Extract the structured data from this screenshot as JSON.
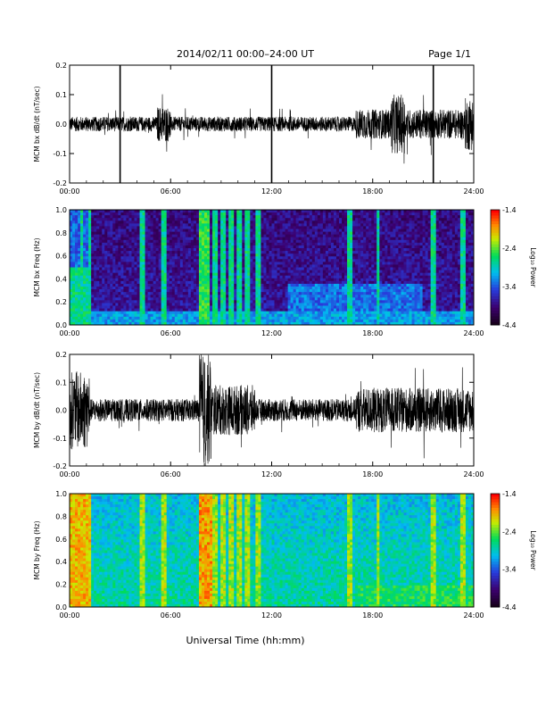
{
  "header": {
    "title": "2014/02/11   00:00–24:00 UT",
    "page": "Page 1/1"
  },
  "footer": {
    "xlabel": "Universal Time (hh:mm)"
  },
  "colorbar": {
    "label": "Log₁₀ Power",
    "ticks": [
      "-1.4",
      "-2.4",
      "-3.4",
      "-4.4"
    ],
    "range": [
      -4.4,
      -1.4
    ],
    "colors": [
      "#200020",
      "#3a006a",
      "#2040e0",
      "#00c8ff",
      "#00e060",
      "#f0f000",
      "#ff8000",
      "#ff0000"
    ]
  },
  "chart_data": [
    {
      "type": "line",
      "ylabel": "MCM bx dB/dt (nT/sec)",
      "xlim": [
        "00:00",
        "24:00"
      ],
      "ylim": [
        -0.2,
        0.2
      ],
      "x_ticks": [
        "00:00",
        "06:00",
        "12:00",
        "18:00",
        "24:00"
      ],
      "y_ticks": [
        "0.2",
        "0.1",
        "0.0",
        "-0.1",
        "-0.2"
      ],
      "series_color": "#000000",
      "description_values": {
        "baseline_amplitude": 0.03,
        "spikes_hours": [
          3.0,
          12.0,
          21.6
        ],
        "burst_hours": [
          5.6,
          19.5,
          23.8
        ]
      }
    },
    {
      "type": "heatmap",
      "ylabel": "MCM bx Freq (Hz)",
      "xlim": [
        "00:00",
        "24:00"
      ],
      "ylim": [
        0.0,
        1.0
      ],
      "x_ticks": [
        "00:00",
        "06:00",
        "12:00",
        "18:00",
        "24:00"
      ],
      "y_ticks": [
        "1.0",
        "0.8",
        "0.6",
        "0.4",
        "0.2",
        "0.0"
      ],
      "z_range": [
        -4.4,
        -1.4
      ]
    },
    {
      "type": "line",
      "ylabel": "MCM by dB/dt (nT/sec)",
      "xlim": [
        "00:00",
        "24:00"
      ],
      "ylim": [
        -0.2,
        0.2
      ],
      "x_ticks": [
        "00:00",
        "06:00",
        "12:00",
        "18:00",
        "24:00"
      ],
      "y_ticks": [
        "0.2",
        "0.1",
        "0.0",
        "-0.1",
        "-0.2"
      ],
      "series_color": "#000000"
    },
    {
      "type": "heatmap",
      "ylabel": "MCM by Freq (Hz)",
      "xlim": [
        "00:00",
        "24:00"
      ],
      "ylim": [
        0.0,
        1.0
      ],
      "x_ticks": [
        "00:00",
        "06:00",
        "12:00",
        "18:00",
        "24:00"
      ],
      "y_ticks": [
        "1.0",
        "0.8",
        "0.6",
        "0.4",
        "0.2",
        "0.0"
      ],
      "z_range": [
        -4.4,
        -1.4
      ]
    }
  ]
}
